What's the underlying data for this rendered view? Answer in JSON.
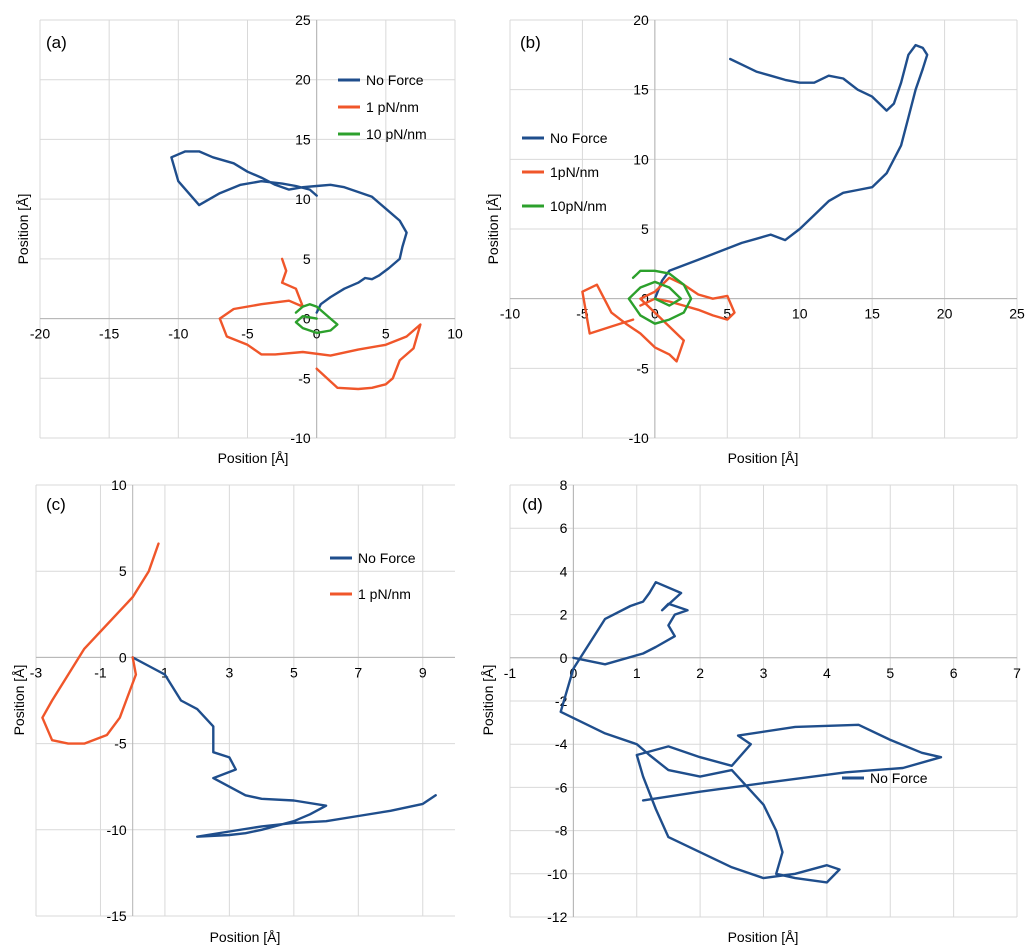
{
  "colors": {
    "no_force": "#1f4e8c",
    "one_pn": "#f0562a",
    "ten_pn": "#2ca02c"
  },
  "chart_data": [
    {
      "type": "line",
      "panel_label": "(a)",
      "xlabel": "Position [Å]",
      "ylabel": "Position [Å]",
      "xlim": [
        -20,
        10
      ],
      "ylim": [
        -10,
        25
      ],
      "xticks": [
        -20,
        -15,
        -10,
        -5,
        0,
        5,
        10
      ],
      "yticks": [
        -10,
        -5,
        0,
        5,
        10,
        15,
        20,
        25
      ],
      "grid": true,
      "legend": "top-right",
      "series": [
        {
          "name": "No Force",
          "color": "#1f4e8c",
          "x": [
            0,
            -0.5,
            -1.5,
            -2.5,
            -4,
            -5.5,
            -7,
            -8.5,
            -10,
            -10.5,
            -9.5,
            -8.5,
            -7.5,
            -6,
            -5,
            -4,
            -3,
            -2,
            -1,
            0,
            1,
            2,
            3,
            4,
            5,
            6,
            6.5,
            6.2,
            6,
            5.2,
            4.5,
            4,
            3.5,
            3,
            2,
            1,
            0.3,
            0
          ],
          "y": [
            10.3,
            10.8,
            11.1,
            11.3,
            11.5,
            11.2,
            10.5,
            9.5,
            11.5,
            13.5,
            14,
            14,
            13.5,
            13,
            12.3,
            11.8,
            11.2,
            10.8,
            11.0,
            11.1,
            11.2,
            11.0,
            10.6,
            10.2,
            9.2,
            8.2,
            7.2,
            6,
            5,
            4.2,
            3.6,
            3.3,
            3.4,
            3.0,
            2.5,
            1.8,
            1.2,
            0.5
          ]
        },
        {
          "name": "1 pN/nm",
          "color": "#f0562a",
          "x": [
            -2.5,
            -2.2,
            -2.5,
            -1.5,
            -1,
            -2,
            -4,
            -6,
            -7,
            -6.5,
            -5,
            -4,
            -3,
            -1,
            1,
            3,
            5,
            6.5,
            7.5,
            7,
            6,
            5.5,
            5,
            4,
            3,
            1.5,
            0
          ],
          "y": [
            5,
            4,
            3,
            2.5,
            1,
            1.5,
            1.2,
            0.8,
            0,
            -1.5,
            -2.2,
            -3,
            -3,
            -2.8,
            -3.1,
            -2.6,
            -2.2,
            -1.5,
            -0.5,
            -2.5,
            -3.5,
            -5,
            -5.5,
            -5.8,
            -5.9,
            -5.8,
            -4.2
          ]
        },
        {
          "name": "10 pN/nm",
          "color": "#2ca02c",
          "x": [
            -1.5,
            -1,
            -0.5,
            0,
            0.5,
            1,
            1.5,
            1,
            0,
            -1,
            -1.5,
            -1,
            0
          ],
          "y": [
            0.5,
            1,
            1.2,
            1,
            0.5,
            0,
            -0.5,
            -1,
            -1.2,
            -0.8,
            -0.3,
            0.2,
            0
          ]
        }
      ]
    },
    {
      "type": "line",
      "panel_label": "(b)",
      "xlabel": "Position [Å]",
      "ylabel": "Position [Å]",
      "xlim": [
        -10,
        25
      ],
      "ylim": [
        -10,
        20
      ],
      "xticks": [
        -10,
        -5,
        0,
        5,
        10,
        15,
        20,
        25
      ],
      "yticks": [
        -10,
        -5,
        0,
        5,
        10,
        15,
        20
      ],
      "grid": true,
      "legend": "left",
      "series": [
        {
          "name": "No Force",
          "color": "#1f4e8c",
          "x": [
            0,
            0.5,
            1,
            2,
            3,
            4,
            5,
            6,
            7,
            8,
            9,
            10,
            11,
            12,
            13,
            14,
            15,
            16,
            17,
            17.5,
            18,
            18.5,
            18.8,
            18.5,
            18,
            17.5,
            17,
            16.5,
            16,
            15.5,
            15,
            14,
            13,
            12,
            11,
            10,
            9,
            8,
            7,
            6,
            5.2
          ],
          "y": [
            0,
            1.3,
            2,
            2.4,
            2.8,
            3.2,
            3.6,
            4,
            4.3,
            4.6,
            4.2,
            5,
            6,
            7,
            7.6,
            7.8,
            8,
            9,
            11,
            13,
            15,
            16.5,
            17.5,
            18,
            18.2,
            17.5,
            15.5,
            14,
            13.5,
            14,
            14.5,
            15,
            15.8,
            16,
            15.5,
            15.5,
            15.7,
            16,
            16.3,
            16.8,
            17.2
          ]
        },
        {
          "name": "1pN/nm",
          "color": "#f0562a",
          "x": [
            -1.5,
            -3,
            -4.5,
            -5,
            -4,
            -3.5,
            -3,
            -2,
            -1,
            0,
            1,
            1.5,
            2,
            1,
            0,
            -1,
            0,
            1,
            2,
            3,
            4,
            5,
            5.5,
            5,
            4,
            3,
            2,
            1,
            0,
            -1
          ],
          "y": [
            -1.5,
            -2,
            -2.5,
            0.5,
            1,
            0,
            -1,
            -1.8,
            -2.5,
            -3.5,
            -4,
            -4.5,
            -3,
            -2,
            -1,
            0,
            0.5,
            1.5,
            1,
            0.3,
            0,
            0.2,
            -1,
            -1.5,
            -1.2,
            -0.8,
            -0.5,
            -0.2,
            0,
            -0.5
          ]
        },
        {
          "name": "10pN/nm",
          "color": "#2ca02c",
          "x": [
            -1.5,
            -1,
            0,
            1,
            2,
            2.5,
            2,
            1,
            0,
            -1,
            -1.8,
            -1,
            0,
            1,
            1.8,
            1,
            0
          ],
          "y": [
            1.5,
            2,
            2,
            1.8,
            1,
            0,
            -1,
            -1.5,
            -1.8,
            -1.2,
            0,
            0.8,
            1.2,
            0.8,
            0,
            -0.5,
            0
          ]
        }
      ]
    },
    {
      "type": "line",
      "panel_label": "(c)",
      "xlabel": "Position [Å]",
      "ylabel": "Position [Å]",
      "xlim": [
        -3,
        10
      ],
      "ylim": [
        -15,
        10
      ],
      "xticks": [
        -3,
        -1,
        1,
        3,
        5,
        7,
        9
      ],
      "yticks": [
        -15,
        -10,
        -5,
        0,
        5,
        10
      ],
      "grid": true,
      "legend": "top-right",
      "series": [
        {
          "name": "No Force",
          "color": "#1f4e8c",
          "x": [
            0,
            0.5,
            1,
            1.5,
            2,
            2.5,
            2.5,
            3,
            3.2,
            2.5,
            3,
            3.5,
            4,
            5,
            6,
            5.5,
            5,
            4,
            3.5,
            3,
            2,
            3,
            4,
            5,
            6,
            7,
            8,
            9,
            9.4
          ],
          "y": [
            0,
            -0.5,
            -1,
            -2.5,
            -3,
            -4,
            -5.5,
            -5.8,
            -6.5,
            -7,
            -7.5,
            -8,
            -8.2,
            -8.3,
            -8.6,
            -9.1,
            -9.5,
            -10,
            -10.2,
            -10.3,
            -10.4,
            -10.1,
            -9.8,
            -9.6,
            -9.5,
            -9.2,
            -8.9,
            -8.5,
            -8
          ]
        },
        {
          "name": "1 pN/nm",
          "color": "#f0562a",
          "x": [
            0,
            0.1,
            -0.2,
            -0.4,
            -0.8,
            -1.5,
            -2,
            -2.5,
            -2.8,
            -2.5,
            -2,
            -1.5,
            -1,
            -0.5,
            0,
            0.5,
            0.8
          ],
          "y": [
            0,
            -1,
            -2.5,
            -3.5,
            -4.5,
            -5,
            -5,
            -4.8,
            -3.5,
            -2.5,
            -1,
            0.5,
            1.5,
            2.5,
            3.5,
            5,
            6.6
          ]
        }
      ]
    },
    {
      "type": "line",
      "panel_label": "(d)",
      "xlabel": "Position [Å]",
      "ylabel": "Position [Å]",
      "xlim": [
        -1,
        7
      ],
      "ylim": [
        -12,
        8
      ],
      "xticks": [
        -1,
        0,
        1,
        2,
        3,
        4,
        5,
        6,
        7
      ],
      "yticks": [
        -12,
        -10,
        -8,
        -6,
        -4,
        -2,
        0,
        2,
        4,
        6,
        8
      ],
      "grid": true,
      "legend": "right",
      "series": [
        {
          "name": "No Force",
          "color": "#1f4e8c",
          "x": [
            0,
            0.5,
            1.1,
            1.3,
            1.6,
            1.5,
            1.6,
            1.8,
            1.5,
            1.4,
            1.7,
            1.3,
            1.2,
            1.1,
            0.9,
            0.5,
            0,
            -0.2,
            0.5,
            1,
            1.2,
            1.5,
            2,
            2.5,
            3,
            3.2,
            3.3,
            3.2,
            3.5,
            4,
            4.2,
            4,
            3.5,
            3,
            2.5,
            2,
            1.5,
            1.3,
            1.1,
            1,
            1.5,
            2,
            2.5,
            2.8,
            2.6,
            3.5,
            4.5,
            5,
            5.5,
            5.8,
            5.2,
            4.3,
            3,
            2,
            1.1
          ],
          "y": [
            0,
            -0.3,
            0.2,
            0.5,
            1,
            1.5,
            2,
            2.2,
            2.5,
            2.2,
            3,
            3.5,
            3,
            2.6,
            2.4,
            1.8,
            -0.5,
            -2.5,
            -3.5,
            -4,
            -4.5,
            -5.2,
            -5.5,
            -5.2,
            -6.8,
            -8,
            -9,
            -10,
            -10.2,
            -10.4,
            -9.8,
            -9.6,
            -10,
            -10.2,
            -9.7,
            -9,
            -8.3,
            -7,
            -5.5,
            -4.5,
            -4.1,
            -4.6,
            -5,
            -4,
            -3.6,
            -3.2,
            -3.1,
            -3.8,
            -4.4,
            -4.6,
            -5.1,
            -5.3,
            -5.8,
            -6.2,
            -6.6
          ]
        }
      ]
    }
  ]
}
